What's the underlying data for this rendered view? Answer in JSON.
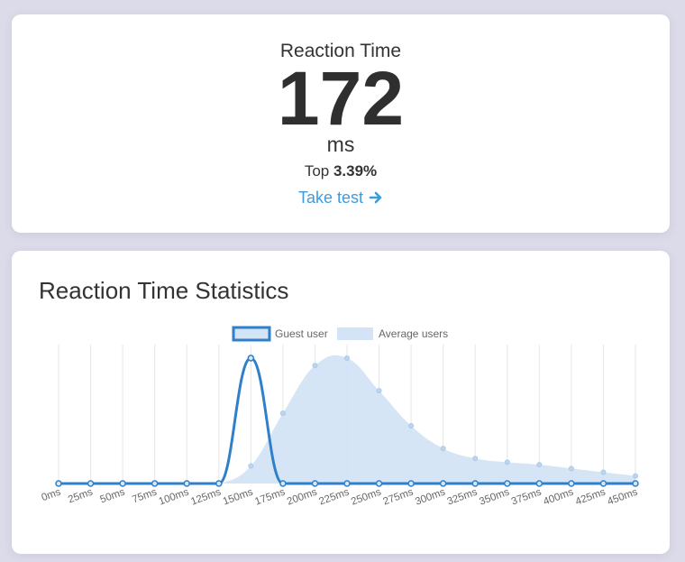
{
  "score_card": {
    "label": "Reaction Time",
    "value": "172",
    "unit": "ms",
    "rank_prefix": "Top",
    "rank_value": "3.39%",
    "cta_label": "Take test",
    "cta_icon": "arrow-right-icon",
    "accent_color": "#3d9be0"
  },
  "stats_card": {
    "title": "Reaction Time Statistics"
  },
  "chart_data": {
    "type": "area",
    "x": [
      "0ms",
      "25ms",
      "50ms",
      "75ms",
      "100ms",
      "125ms",
      "150ms",
      "175ms",
      "200ms",
      "225ms",
      "250ms",
      "275ms",
      "300ms",
      "325ms",
      "350ms",
      "375ms",
      "400ms",
      "425ms",
      "450ms"
    ],
    "series": [
      {
        "name": "Guest user",
        "kind": "line",
        "color": "#2f80c8",
        "values": [
          0,
          0,
          0,
          0,
          0,
          0,
          100,
          0,
          0,
          0,
          0,
          0,
          0,
          0,
          0,
          0,
          0,
          0,
          0
        ]
      },
      {
        "name": "Average users",
        "kind": "area",
        "color": "#d3e4f6",
        "values": [
          0,
          0,
          0,
          0,
          0,
          0,
          14,
          56,
          94,
          100,
          74,
          46,
          28,
          20,
          17,
          15,
          12,
          9,
          6
        ]
      }
    ],
    "ylim": [
      0,
      105
    ],
    "grid": "vertical",
    "legend": "top-center",
    "legend_entries": [
      "Guest user",
      "Average users"
    ]
  }
}
